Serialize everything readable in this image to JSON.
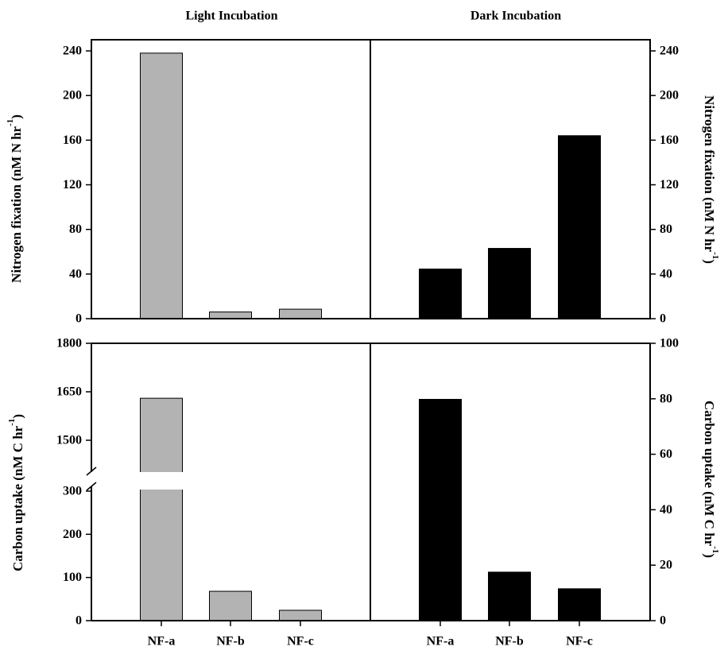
{
  "colors": {
    "light_bar": "#b3b3b3",
    "dark_bar": "#000000",
    "bar_edge": "#000000",
    "frame": "#000000"
  },
  "chart_data": [
    {
      "type": "bar",
      "panel": "top-left",
      "title": "Light Incubation",
      "ylabel": "Nitrogen fixation (nM N hr",
      "ylabel_sup": "-1",
      "ylabel_close": ")",
      "categories": [
        "NF-a",
        "NF-b",
        "NF-c"
      ],
      "values": [
        238,
        6,
        8.5
      ],
      "ylim": [
        0,
        250
      ],
      "yticks": [
        0,
        40,
        80,
        120,
        160,
        200,
        240
      ],
      "ytick_labels": [
        "0",
        "40",
        "80",
        "120",
        "160",
        "200",
        "240"
      ],
      "grid": false
    },
    {
      "type": "bar",
      "panel": "top-right",
      "title": "Dark Incubation",
      "ylabel": "Nitrogen fixation (nM N hr",
      "ylabel_sup": "-1",
      "ylabel_close": ")",
      "categories": [
        "NF-a",
        "NF-b",
        "NF-c"
      ],
      "values": [
        44.5,
        63,
        164
      ],
      "ylim": [
        0,
        250
      ],
      "yticks": [
        0,
        40,
        80,
        120,
        160,
        200,
        240
      ],
      "ytick_labels": [
        "0",
        "40",
        "80",
        "120",
        "160",
        "200",
        "240"
      ],
      "grid": false
    },
    {
      "type": "bar",
      "panel": "bottom-left",
      "ylabel": "Carbon uptake (nM C hr",
      "ylabel_sup": "-1",
      "ylabel_close": ")",
      "categories": [
        "NF-a",
        "NF-b",
        "NF-c"
      ],
      "values": [
        1630,
        68,
        24
      ],
      "broken_axis": {
        "lower": [
          0,
          300
        ],
        "upper": [
          1400,
          1800
        ]
      },
      "yticks_lower": [
        0,
        100,
        200,
        300
      ],
      "ytick_labels_lower": [
        "0",
        "100",
        "200",
        "300"
      ],
      "yticks_upper": [
        1500,
        1650,
        1800
      ],
      "ytick_labels_upper": [
        "1500",
        "1650",
        "1800"
      ],
      "grid": false
    },
    {
      "type": "bar",
      "panel": "bottom-right",
      "ylabel": "Carbon uptake (nM C hr",
      "ylabel_sup": "-1",
      "ylabel_close": ")",
      "categories": [
        "NF-a",
        "NF-b",
        "NF-c"
      ],
      "values": [
        79.8,
        17.5,
        11.5
      ],
      "ylim": [
        0,
        100
      ],
      "yticks": [
        0,
        20,
        40,
        60,
        80,
        100
      ],
      "ytick_labels": [
        "0",
        "20",
        "40",
        "60",
        "80",
        "100"
      ],
      "grid": false
    }
  ]
}
